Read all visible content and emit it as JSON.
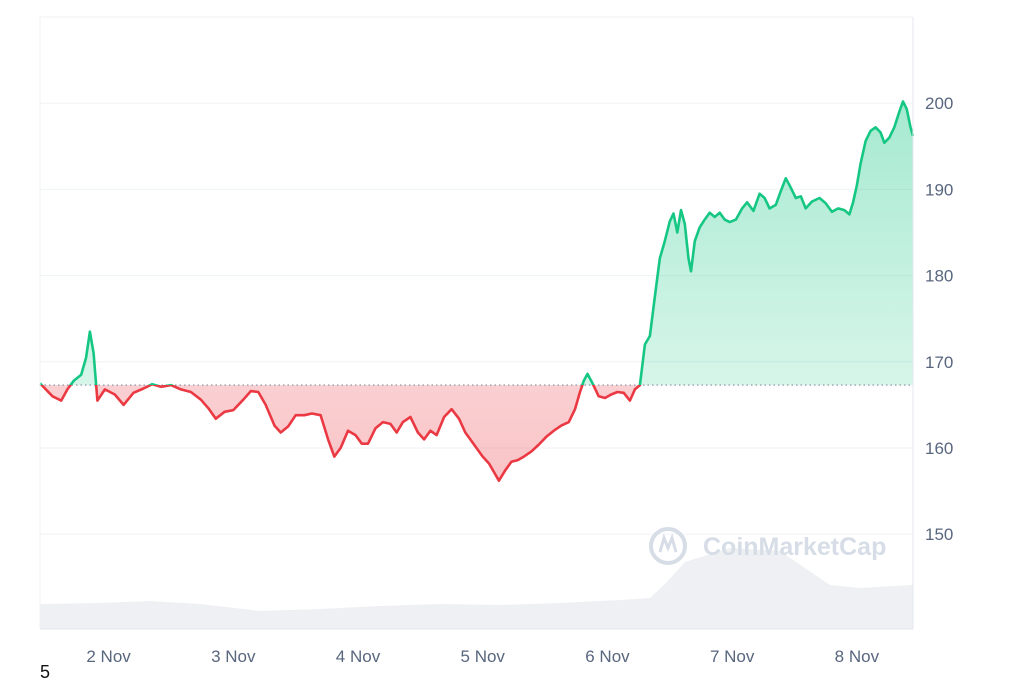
{
  "page_number": "5",
  "watermark": {
    "text": "CoinMarketCap",
    "icon": "coinmarketcap-logo-icon"
  },
  "colors": {
    "up": "#16c784",
    "down": "#ea3943",
    "grid": "#eff2f5",
    "baseline": "#858ca2",
    "volume": "#eef0f3",
    "axis_text": "#58667e"
  },
  "chart_data": {
    "type": "area",
    "title": "",
    "xlabel": "",
    "ylabel": "",
    "ylim": [
      139,
      210
    ],
    "y_ticks": [
      150,
      160,
      170,
      180,
      190,
      200
    ],
    "y_tick_labels": [
      "150",
      "160",
      "170",
      "180",
      "190",
      "200"
    ],
    "y_axis_position": "right",
    "grid": true,
    "baseline_value": 167.3,
    "xlim": [
      1.45,
      8.45
    ],
    "x_ticks": [
      2,
      3,
      4,
      5,
      6,
      7,
      8
    ],
    "x_tick_labels": [
      "2 Nov",
      "3 Nov",
      "4 Nov",
      "5 Nov",
      "6 Nov",
      "7 Nov",
      "8 Nov"
    ],
    "series": [
      {
        "values": [
          [
            1.45,
            167.5
          ],
          [
            1.55,
            166.0
          ],
          [
            1.62,
            165.5
          ],
          [
            1.67,
            166.8
          ],
          [
            1.72,
            167.8
          ],
          [
            1.78,
            168.5
          ],
          [
            1.82,
            170.5
          ],
          [
            1.85,
            173.5
          ],
          [
            1.88,
            171.0
          ],
          [
            1.91,
            165.5
          ],
          [
            1.97,
            166.8
          ],
          [
            2.05,
            166.2
          ],
          [
            2.12,
            165.0
          ],
          [
            2.2,
            166.4
          ],
          [
            2.28,
            166.9
          ],
          [
            2.35,
            167.4
          ],
          [
            2.42,
            167.1
          ],
          [
            2.5,
            167.3
          ],
          [
            2.58,
            166.8
          ],
          [
            2.66,
            166.5
          ],
          [
            2.74,
            165.6
          ],
          [
            2.8,
            164.6
          ],
          [
            2.86,
            163.4
          ],
          [
            2.93,
            164.2
          ],
          [
            3.0,
            164.4
          ],
          [
            3.08,
            165.6
          ],
          [
            3.14,
            166.6
          ],
          [
            3.2,
            166.5
          ],
          [
            3.26,
            165.0
          ],
          [
            3.33,
            162.6
          ],
          [
            3.38,
            161.8
          ],
          [
            3.44,
            162.5
          ],
          [
            3.5,
            163.8
          ],
          [
            3.57,
            163.8
          ],
          [
            3.63,
            164.0
          ],
          [
            3.7,
            163.8
          ],
          [
            3.76,
            161.0
          ],
          [
            3.81,
            159.0
          ],
          [
            3.86,
            160.0
          ],
          [
            3.92,
            162.0
          ],
          [
            3.98,
            161.5
          ],
          [
            4.03,
            160.5
          ],
          [
            4.08,
            160.5
          ],
          [
            4.14,
            162.3
          ],
          [
            4.2,
            163.0
          ],
          [
            4.26,
            162.8
          ],
          [
            4.31,
            161.8
          ],
          [
            4.36,
            163.0
          ],
          [
            4.42,
            163.6
          ],
          [
            4.48,
            161.8
          ],
          [
            4.53,
            161.0
          ],
          [
            4.58,
            162.0
          ],
          [
            4.63,
            161.5
          ],
          [
            4.69,
            163.6
          ],
          [
            4.75,
            164.5
          ],
          [
            4.81,
            163.4
          ],
          [
            4.86,
            161.8
          ],
          [
            4.9,
            161.0
          ],
          [
            4.95,
            160.0
          ],
          [
            5.0,
            159.0
          ],
          [
            5.05,
            158.2
          ],
          [
            5.09,
            157.2
          ],
          [
            5.13,
            156.2
          ],
          [
            5.18,
            157.4
          ],
          [
            5.23,
            158.4
          ],
          [
            5.28,
            158.6
          ],
          [
            5.33,
            159.0
          ],
          [
            5.39,
            159.6
          ],
          [
            5.45,
            160.4
          ],
          [
            5.51,
            161.3
          ],
          [
            5.57,
            162.0
          ],
          [
            5.63,
            162.6
          ],
          [
            5.69,
            163.0
          ],
          [
            5.74,
            164.5
          ],
          [
            5.78,
            166.5
          ],
          [
            5.81,
            167.8
          ],
          [
            5.84,
            168.6
          ],
          [
            5.88,
            167.5
          ],
          [
            5.93,
            166.0
          ],
          [
            5.98,
            165.8
          ],
          [
            6.03,
            166.2
          ],
          [
            6.08,
            166.5
          ],
          [
            6.13,
            166.4
          ],
          [
            6.18,
            165.5
          ],
          [
            6.22,
            166.8
          ],
          [
            6.26,
            167.3
          ],
          [
            6.3,
            172.0
          ],
          [
            6.34,
            173.0
          ],
          [
            6.38,
            177.5
          ],
          [
            6.42,
            182.0
          ],
          [
            6.46,
            184.0
          ],
          [
            6.5,
            186.3
          ],
          [
            6.53,
            187.2
          ],
          [
            6.56,
            185.0
          ],
          [
            6.59,
            187.6
          ],
          [
            6.62,
            186.0
          ],
          [
            6.65,
            182.0
          ],
          [
            6.67,
            180.5
          ],
          [
            6.7,
            184.0
          ],
          [
            6.74,
            185.6
          ],
          [
            6.78,
            186.5
          ],
          [
            6.82,
            187.3
          ],
          [
            6.86,
            186.8
          ],
          [
            6.9,
            187.3
          ],
          [
            6.94,
            186.5
          ],
          [
            6.98,
            186.2
          ],
          [
            7.03,
            186.5
          ],
          [
            7.08,
            187.8
          ],
          [
            7.12,
            188.5
          ],
          [
            7.17,
            187.5
          ],
          [
            7.22,
            189.5
          ],
          [
            7.26,
            189.0
          ],
          [
            7.3,
            187.8
          ],
          [
            7.35,
            188.2
          ],
          [
            7.39,
            189.8
          ],
          [
            7.43,
            191.3
          ],
          [
            7.47,
            190.2
          ],
          [
            7.51,
            189.0
          ],
          [
            7.55,
            189.2
          ],
          [
            7.59,
            187.8
          ],
          [
            7.64,
            188.6
          ],
          [
            7.7,
            189.0
          ],
          [
            7.75,
            188.4
          ],
          [
            7.8,
            187.4
          ],
          [
            7.85,
            187.8
          ],
          [
            7.9,
            187.6
          ],
          [
            7.94,
            187.1
          ],
          [
            7.97,
            188.5
          ],
          [
            8.0,
            190.5
          ],
          [
            8.03,
            193.0
          ],
          [
            8.07,
            195.6
          ],
          [
            8.11,
            196.8
          ],
          [
            8.15,
            197.2
          ],
          [
            8.19,
            196.6
          ],
          [
            8.22,
            195.4
          ],
          [
            8.26,
            196.0
          ],
          [
            8.3,
            197.2
          ],
          [
            8.34,
            199.0
          ],
          [
            8.37,
            200.2
          ],
          [
            8.4,
            199.3
          ],
          [
            8.43,
            197.2
          ],
          [
            8.45,
            196.2
          ]
        ]
      }
    ],
    "volume_shown": true
  }
}
